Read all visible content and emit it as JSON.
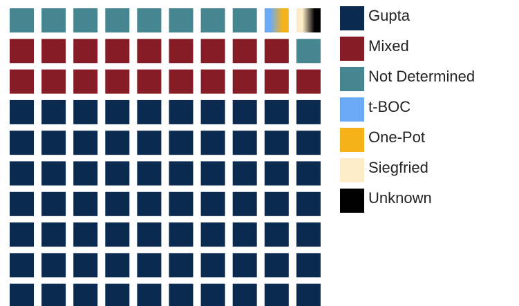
{
  "chart_data": {
    "type": "waffle",
    "title": "",
    "units_total": 100,
    "series": [
      {
        "name": "Gupta",
        "value": 70.0,
        "color": "#0b2a4f"
      },
      {
        "name": "Mixed",
        "value": 19.0,
        "color": "#861c26"
      },
      {
        "name": "Not Determined",
        "value": 9.0,
        "color": "#468691"
      },
      {
        "name": "t-BOC",
        "value": 0.5,
        "color": "#6aaaf5"
      },
      {
        "name": "One-Pot",
        "value": 0.5,
        "color": "#f6b21a"
      },
      {
        "name": "Siegfried",
        "value": 0.5,
        "color": "#fdecc8"
      },
      {
        "name": "Unknown",
        "value": 0.5,
        "color": "#000000"
      }
    ],
    "legend_position": "right"
  }
}
